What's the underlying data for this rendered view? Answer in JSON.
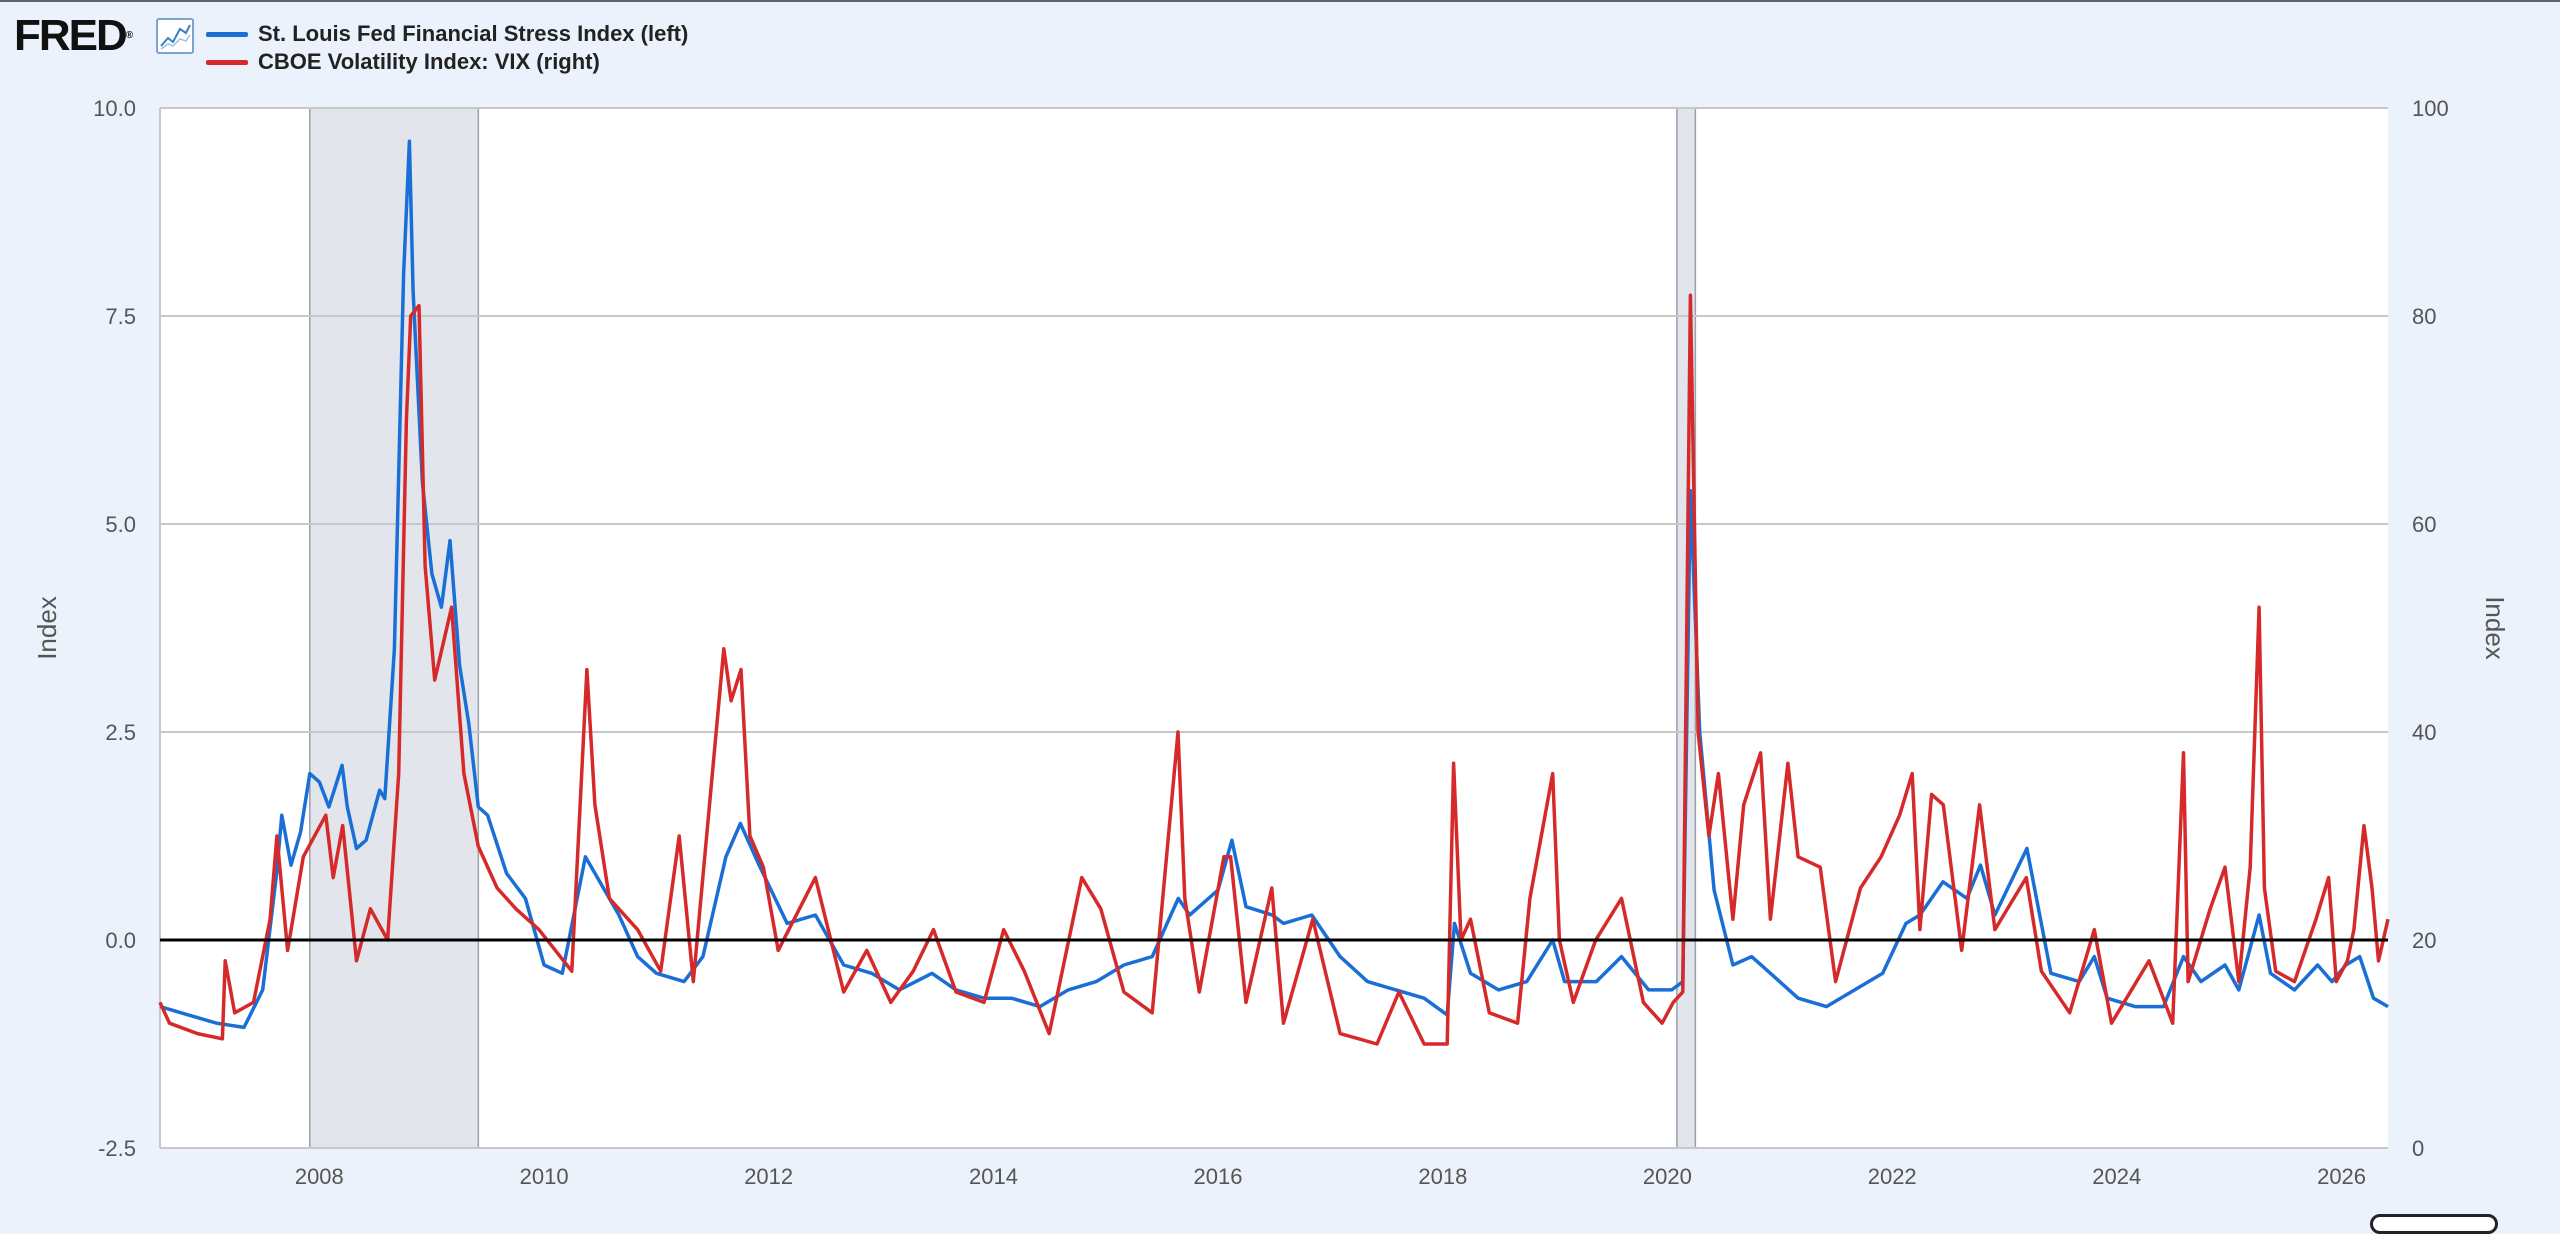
{
  "header": {
    "logo_text": "FRED",
    "logo_mark": "®",
    "graph_icon": "line-chart-icon"
  },
  "chart_data": {
    "type": "line",
    "title": "",
    "xlabel": "",
    "ylabel_left": "Index",
    "ylabel_right": "Index",
    "x_range": [
      "2006-08-01",
      "2026-06-01"
    ],
    "x_ticks": [
      "2008",
      "2010",
      "2012",
      "2014",
      "2016",
      "2018",
      "2020",
      "2022",
      "2024",
      "2026"
    ],
    "y_left": {
      "range": [
        -2.5,
        10.0
      ],
      "ticks": [
        "-2.5",
        "0.0",
        "2.5",
        "5.0",
        "7.5",
        "10.0"
      ]
    },
    "y_right": {
      "range": [
        0,
        100
      ],
      "ticks": [
        "0",
        "20",
        "40",
        "60",
        "80",
        "100"
      ]
    },
    "grid": true,
    "legend_position": "top-left",
    "recessions": [
      [
        "2007-12-01",
        "2009-06-01"
      ],
      [
        "2020-02-01",
        "2020-04-01"
      ]
    ],
    "zero_line": 0,
    "series": [
      {
        "name": "St. Louis Fed Financial Stress Index (left)",
        "axis": "left",
        "color": "#1a6fd6",
        "points": [
          [
            "2006-08-01",
            -0.8
          ],
          [
            "2006-11-01",
            -0.9
          ],
          [
            "2007-02-01",
            -1.0
          ],
          [
            "2007-05-01",
            -1.05
          ],
          [
            "2007-07-01",
            -0.6
          ],
          [
            "2007-08-15",
            0.8
          ],
          [
            "2007-09-01",
            1.5
          ],
          [
            "2007-10-01",
            0.9
          ],
          [
            "2007-11-01",
            1.3
          ],
          [
            "2007-12-01",
            2.0
          ],
          [
            "2008-01-01",
            1.9
          ],
          [
            "2008-02-01",
            1.6
          ],
          [
            "2008-03-15",
            2.1
          ],
          [
            "2008-04-01",
            1.6
          ],
          [
            "2008-05-01",
            1.1
          ],
          [
            "2008-06-01",
            1.2
          ],
          [
            "2008-07-15",
            1.8
          ],
          [
            "2008-08-01",
            1.7
          ],
          [
            "2008-09-01",
            3.5
          ],
          [
            "2008-10-01",
            8.0
          ],
          [
            "2008-10-20",
            9.6
          ],
          [
            "2008-11-01",
            7.8
          ],
          [
            "2008-12-01",
            5.5
          ],
          [
            "2009-01-01",
            4.4
          ],
          [
            "2009-02-01",
            4.0
          ],
          [
            "2009-03-01",
            4.8
          ],
          [
            "2009-04-01",
            3.3
          ],
          [
            "2009-05-01",
            2.6
          ],
          [
            "2009-06-01",
            1.6
          ],
          [
            "2009-07-01",
            1.5
          ],
          [
            "2009-09-01",
            0.8
          ],
          [
            "2009-11-01",
            0.5
          ],
          [
            "2010-01-01",
            -0.3
          ],
          [
            "2010-03-01",
            -0.4
          ],
          [
            "2010-05-15",
            1.0
          ],
          [
            "2010-07-01",
            0.7
          ],
          [
            "2010-09-01",
            0.3
          ],
          [
            "2010-11-01",
            -0.2
          ],
          [
            "2011-01-01",
            -0.4
          ],
          [
            "2011-04-01",
            -0.5
          ],
          [
            "2011-06-01",
            -0.2
          ],
          [
            "2011-08-15",
            1.0
          ],
          [
            "2011-10-01",
            1.4
          ],
          [
            "2011-12-01",
            0.9
          ],
          [
            "2012-03-01",
            0.2
          ],
          [
            "2012-06-01",
            0.3
          ],
          [
            "2012-09-01",
            -0.3
          ],
          [
            "2012-12-01",
            -0.4
          ],
          [
            "2013-03-01",
            -0.6
          ],
          [
            "2013-06-15",
            -0.4
          ],
          [
            "2013-09-01",
            -0.6
          ],
          [
            "2013-12-01",
            -0.7
          ],
          [
            "2014-03-01",
            -0.7
          ],
          [
            "2014-06-01",
            -0.8
          ],
          [
            "2014-09-01",
            -0.6
          ],
          [
            "2014-12-01",
            -0.5
          ],
          [
            "2015-03-01",
            -0.3
          ],
          [
            "2015-06-01",
            -0.2
          ],
          [
            "2015-08-25",
            0.5
          ],
          [
            "2015-10-01",
            0.3
          ],
          [
            "2016-01-01",
            0.6
          ],
          [
            "2016-02-15",
            1.2
          ],
          [
            "2016-04-01",
            0.4
          ],
          [
            "2016-06-25",
            0.3
          ],
          [
            "2016-08-01",
            0.2
          ],
          [
            "2016-11-01",
            0.3
          ],
          [
            "2017-02-01",
            -0.2
          ],
          [
            "2017-05-01",
            -0.5
          ],
          [
            "2017-08-01",
            -0.6
          ],
          [
            "2017-11-01",
            -0.7
          ],
          [
            "2018-01-15",
            -0.9
          ],
          [
            "2018-02-08",
            0.2
          ],
          [
            "2018-04-01",
            -0.4
          ],
          [
            "2018-07-01",
            -0.6
          ],
          [
            "2018-10-01",
            -0.5
          ],
          [
            "2018-12-24",
            0.0
          ],
          [
            "2019-02-01",
            -0.5
          ],
          [
            "2019-05-15",
            -0.5
          ],
          [
            "2019-08-05",
            -0.2
          ],
          [
            "2019-11-01",
            -0.6
          ],
          [
            "2020-01-15",
            -0.6
          ],
          [
            "2020-02-20",
            -0.5
          ],
          [
            "2020-03-16",
            5.4
          ],
          [
            "2020-04-15",
            2.5
          ],
          [
            "2020-06-01",
            0.6
          ],
          [
            "2020-08-01",
            -0.3
          ],
          [
            "2020-10-01",
            -0.2
          ],
          [
            "2020-12-01",
            -0.4
          ],
          [
            "2021-03-01",
            -0.7
          ],
          [
            "2021-06-01",
            -0.8
          ],
          [
            "2021-09-01",
            -0.6
          ],
          [
            "2021-12-01",
            -0.4
          ],
          [
            "2022-02-15",
            0.2
          ],
          [
            "2022-04-01",
            0.3
          ],
          [
            "2022-06-15",
            0.7
          ],
          [
            "2022-09-01",
            0.5
          ],
          [
            "2022-10-15",
            0.9
          ],
          [
            "2022-12-01",
            0.3
          ],
          [
            "2023-03-15",
            1.1
          ],
          [
            "2023-06-01",
            -0.4
          ],
          [
            "2023-09-01",
            -0.5
          ],
          [
            "2023-10-20",
            -0.2
          ],
          [
            "2023-12-01",
            -0.7
          ],
          [
            "2024-03-01",
            -0.8
          ],
          [
            "2024-06-01",
            -0.8
          ],
          [
            "2024-08-05",
            -0.2
          ],
          [
            "2024-10-01",
            -0.5
          ],
          [
            "2024-12-18",
            -0.3
          ],
          [
            "2025-02-01",
            -0.6
          ],
          [
            "2025-04-08",
            0.3
          ],
          [
            "2025-05-15",
            -0.4
          ],
          [
            "2025-08-01",
            -0.6
          ],
          [
            "2025-10-15",
            -0.3
          ],
          [
            "2025-12-01",
            -0.5
          ],
          [
            "2026-01-15",
            -0.3
          ],
          [
            "2026-03-01",
            -0.2
          ],
          [
            "2026-04-15",
            -0.7
          ],
          [
            "2026-06-01",
            -0.8
          ]
        ]
      },
      {
        "name": "CBOE Volatility Index: VIX (right)",
        "axis": "right",
        "color": "#d62a2a",
        "points": [
          [
            "2006-08-01",
            14
          ],
          [
            "2006-09-01",
            12
          ],
          [
            "2006-12-01",
            11
          ],
          [
            "2007-02-20",
            10.5
          ],
          [
            "2007-03-01",
            18
          ],
          [
            "2007-04-01",
            13
          ],
          [
            "2007-06-01",
            14
          ],
          [
            "2007-07-25",
            22
          ],
          [
            "2007-08-16",
            30
          ],
          [
            "2007-09-20",
            19
          ],
          [
            "2007-11-10",
            28
          ],
          [
            "2008-01-22",
            32
          ],
          [
            "2008-02-15",
            26
          ],
          [
            "2008-03-17",
            31
          ],
          [
            "2008-05-01",
            18
          ],
          [
            "2008-06-15",
            23
          ],
          [
            "2008-08-10",
            20
          ],
          [
            "2008-09-15",
            36
          ],
          [
            "2008-10-10",
            70
          ],
          [
            "2008-10-24",
            80
          ],
          [
            "2008-11-20",
            81
          ],
          [
            "2008-12-10",
            56
          ],
          [
            "2009-01-10",
            45
          ],
          [
            "2009-03-06",
            52
          ],
          [
            "2009-04-15",
            36
          ],
          [
            "2009-06-01",
            29
          ],
          [
            "2009-08-01",
            25
          ],
          [
            "2009-10-01",
            23
          ],
          [
            "2009-12-15",
            21
          ],
          [
            "2010-04-01",
            17
          ],
          [
            "2010-05-20",
            46
          ],
          [
            "2010-06-15",
            33
          ],
          [
            "2010-08-01",
            24
          ],
          [
            "2010-11-01",
            21
          ],
          [
            "2011-01-15",
            17
          ],
          [
            "2011-03-16",
            30
          ],
          [
            "2011-05-01",
            16
          ],
          [
            "2011-08-08",
            48
          ],
          [
            "2011-09-01",
            43
          ],
          [
            "2011-10-03",
            46
          ],
          [
            "2011-11-01",
            30
          ],
          [
            "2011-12-15",
            27
          ],
          [
            "2012-02-01",
            19
          ],
          [
            "2012-06-01",
            26
          ],
          [
            "2012-09-01",
            15
          ],
          [
            "2012-11-15",
            19
          ],
          [
            "2013-02-01",
            14
          ],
          [
            "2013-04-15",
            17
          ],
          [
            "2013-06-20",
            21
          ],
          [
            "2013-09-01",
            15
          ],
          [
            "2013-12-01",
            14
          ],
          [
            "2014-02-03",
            21
          ],
          [
            "2014-04-11",
            17
          ],
          [
            "2014-07-01",
            11
          ],
          [
            "2014-10-15",
            26
          ],
          [
            "2014-12-16",
            23
          ],
          [
            "2015-03-01",
            15
          ],
          [
            "2015-06-01",
            13
          ],
          [
            "2015-08-24",
            40
          ],
          [
            "2015-09-15",
            24
          ],
          [
            "2015-11-01",
            15
          ],
          [
            "2016-01-20",
            28
          ],
          [
            "2016-02-11",
            28
          ],
          [
            "2016-04-01",
            14
          ],
          [
            "2016-06-24",
            25
          ],
          [
            "2016-08-01",
            12
          ],
          [
            "2016-11-04",
            22
          ],
          [
            "2017-02-01",
            11
          ],
          [
            "2017-06-01",
            10
          ],
          [
            "2017-08-11",
            15
          ],
          [
            "2017-11-01",
            10
          ],
          [
            "2018-01-15",
            10
          ],
          [
            "2018-02-05",
            37
          ],
          [
            "2018-03-01",
            20
          ],
          [
            "2018-04-01",
            22
          ],
          [
            "2018-06-01",
            13
          ],
          [
            "2018-09-01",
            12
          ],
          [
            "2018-10-11",
            24
          ],
          [
            "2018-12-24",
            36
          ],
          [
            "2019-01-15",
            20
          ],
          [
            "2019-03-01",
            14
          ],
          [
            "2019-05-13",
            20
          ],
          [
            "2019-08-05",
            24
          ],
          [
            "2019-10-15",
            14
          ],
          [
            "2019-12-15",
            12
          ],
          [
            "2020-01-20",
            14
          ],
          [
            "2020-02-20",
            15
          ],
          [
            "2020-03-16",
            82
          ],
          [
            "2020-04-10",
            40
          ],
          [
            "2020-05-15",
            30
          ],
          [
            "2020-06-15",
            36
          ],
          [
            "2020-08-01",
            22
          ],
          [
            "2020-09-05",
            33
          ],
          [
            "2020-10-30",
            38
          ],
          [
            "2020-12-01",
            22
          ],
          [
            "2021-01-27",
            37
          ],
          [
            "2021-03-01",
            28
          ],
          [
            "2021-05-12",
            27
          ],
          [
            "2021-07-01",
            16
          ],
          [
            "2021-09-20",
            25
          ],
          [
            "2021-11-26",
            28
          ],
          [
            "2022-01-25",
            32
          ],
          [
            "2022-03-07",
            36
          ],
          [
            "2022-04-01",
            21
          ],
          [
            "2022-05-09",
            34
          ],
          [
            "2022-06-16",
            33
          ],
          [
            "2022-08-15",
            19
          ],
          [
            "2022-10-12",
            33
          ],
          [
            "2022-12-01",
            21
          ],
          [
            "2023-03-13",
            26
          ],
          [
            "2023-05-01",
            17
          ],
          [
            "2023-08-01",
            13
          ],
          [
            "2023-10-20",
            21
          ],
          [
            "2023-12-15",
            12
          ],
          [
            "2024-04-15",
            18
          ],
          [
            "2024-07-01",
            12
          ],
          [
            "2024-08-05",
            38
          ],
          [
            "2024-08-20",
            16
          ],
          [
            "2024-10-31",
            23
          ],
          [
            "2024-12-18",
            27
          ],
          [
            "2025-02-01",
            16
          ],
          [
            "2025-03-10",
            27
          ],
          [
            "2025-04-08",
            52
          ],
          [
            "2025-04-25",
            25
          ],
          [
            "2025-06-01",
            17
          ],
          [
            "2025-08-01",
            16
          ],
          [
            "2025-10-10",
            22
          ],
          [
            "2025-11-20",
            26
          ],
          [
            "2025-12-15",
            16
          ],
          [
            "2026-01-20",
            18
          ],
          [
            "2026-02-10",
            21
          ],
          [
            "2026-03-15",
            31
          ],
          [
            "2026-04-10",
            25
          ],
          [
            "2026-05-01",
            18
          ],
          [
            "2026-06-01",
            22
          ]
        ]
      }
    ]
  }
}
